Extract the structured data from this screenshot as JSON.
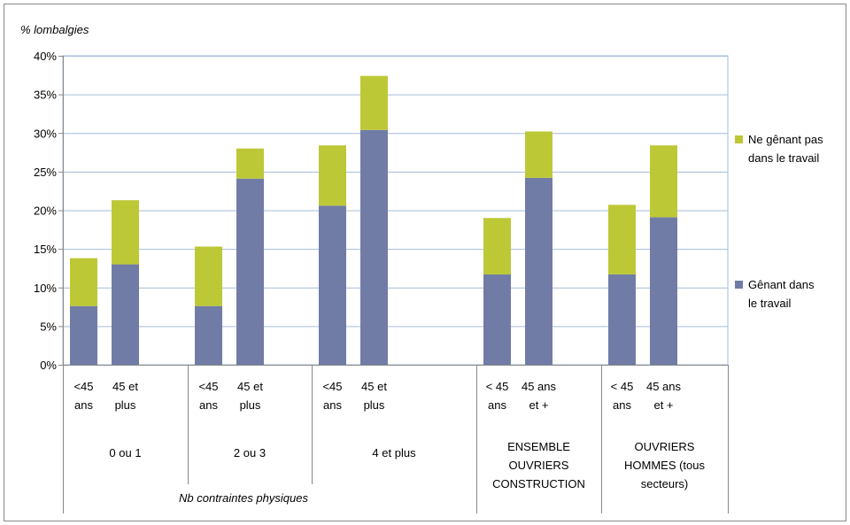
{
  "chart_data": {
    "type": "bar",
    "stacked": true,
    "ylabel": "% lombalgies",
    "ylim": [
      0,
      40
    ],
    "y_ticks": [
      "0%",
      "5%",
      "10%",
      "15%",
      "20%",
      "25%",
      "30%",
      "35%",
      "40%"
    ],
    "grid": true,
    "legend_position": "right",
    "x_super_label": "Nb contraintes physiques",
    "groups": [
      {
        "label": "0 ou 1",
        "bars": [
          {
            "label": "<45 ans",
            "line1": "<45",
            "line2": "ans"
          },
          {
            "label": "45 et plus",
            "line1": "45 et",
            "line2": "plus"
          }
        ]
      },
      {
        "label": "2 ou 3",
        "bars": [
          {
            "label": "<45 ans",
            "line1": "<45",
            "line2": "ans"
          },
          {
            "label": "45 et plus",
            "line1": "45 et",
            "line2": "plus"
          }
        ]
      },
      {
        "label": "4 et plus",
        "bars": [
          {
            "label": "<45 ans",
            "line1": "<45",
            "line2": "ans"
          },
          {
            "label": "45 et plus",
            "line1": "45 et",
            "line2": "plus"
          }
        ]
      },
      {
        "label": "ENSEMBLE OUVRIERS CONSTRUCTION",
        "label_lines": [
          "ENSEMBLE",
          "OUVRIERS",
          "CONSTRUCTION"
        ],
        "bars": [
          {
            "label": "< 45 ans",
            "line1": "< 45",
            "line2": "ans"
          },
          {
            "label": "45 ans et +",
            "line1": "45 ans",
            "line2": "et +"
          }
        ]
      },
      {
        "label": "OUVRIERS HOMMES (tous secteurs)",
        "label_lines": [
          "OUVRIERS",
          "HOMMES  (tous",
          "secteurs)"
        ],
        "bars": [
          {
            "label": "< 45 ans",
            "line1": "< 45",
            "line2": "ans"
          },
          {
            "label": "45 ans et +",
            "line1": "45 ans",
            "line2": "et +"
          }
        ]
      }
    ],
    "series": [
      {
        "name": "Gênant dans le travail",
        "name_lines": [
          "Gênant dans",
          "le travail"
        ],
        "color": "#717ca6",
        "values": [
          7.6,
          13.0,
          7.6,
          24.1,
          20.6,
          30.4,
          11.7,
          24.2,
          11.7,
          19.1
        ]
      },
      {
        "name": "Ne gênant pas dans le travail",
        "name_lines": [
          "Ne gênant pas",
          "dans le travail"
        ],
        "color": "#bdc836",
        "values": [
          6.2,
          8.3,
          7.7,
          3.9,
          7.8,
          7.0,
          7.3,
          6.0,
          9.0,
          9.3
        ]
      }
    ]
  }
}
